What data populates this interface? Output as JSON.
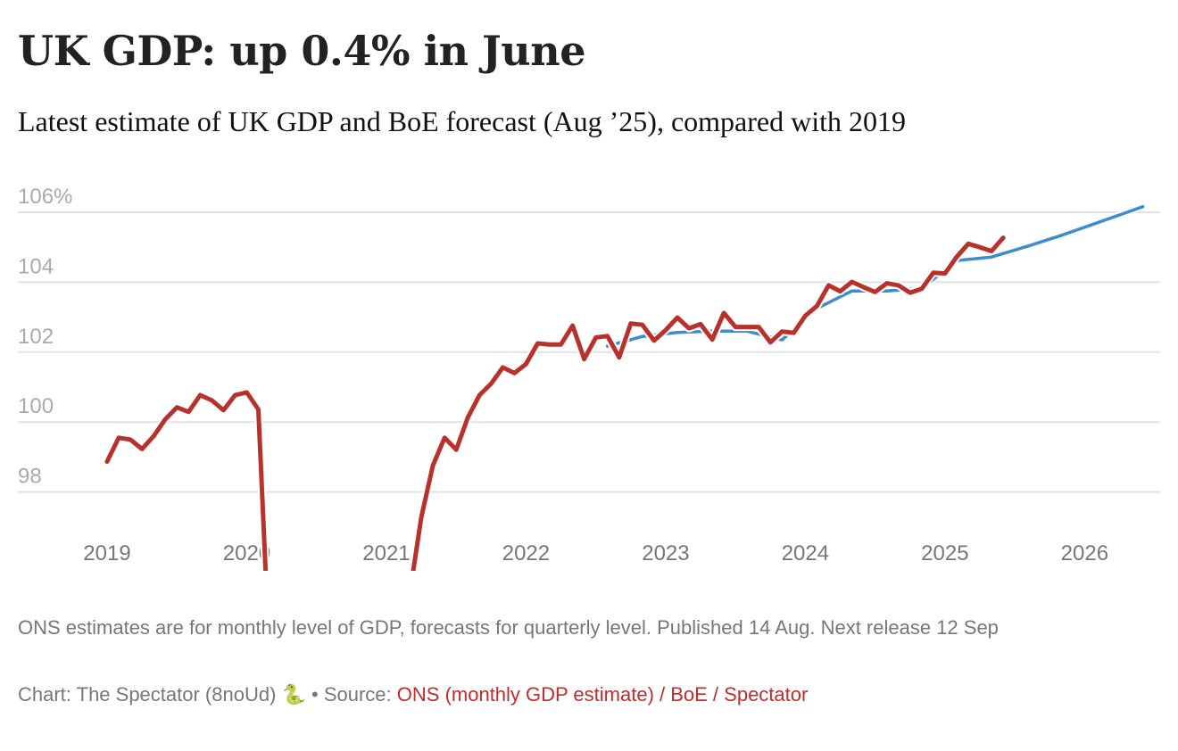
{
  "chart_data": {
    "type": "line",
    "title": "UK GDP: up 0.4% in June",
    "subtitle": "Latest estimate of UK GDP and BoE forecast (Aug ’25), compared with 2019",
    "ylim": [
      95.75,
      107
    ],
    "yticks": [
      98,
      100,
      102,
      104,
      106
    ],
    "ytick_labels": [
      "98",
      "100",
      "102",
      "104",
      "106%"
    ],
    "xticks": [
      "2019",
      "2020",
      "2021",
      "2022",
      "2023",
      "2024",
      "2025",
      "2026"
    ],
    "grid": true,
    "colors": {
      "ons": "#b8312a",
      "forecast": "#3d8bd0"
    },
    "series": [
      {
        "key": "forecast",
        "x": [
          "2022-08",
          "2022-11",
          "2023-02",
          "2023-05",
          "2023-08",
          "2023-11",
          "2024-02",
          "2024-05",
          "2024-08",
          "2024-11",
          "2025-02",
          "2025-05",
          "2025-08",
          "2025-11",
          "2026-02",
          "2026-05",
          "2026-06"
        ],
        "values": [
          102.17,
          102.45,
          102.56,
          102.6,
          102.6,
          102.35,
          103.25,
          103.75,
          103.75,
          103.82,
          104.62,
          104.72,
          105.02,
          105.34,
          105.69,
          106.04,
          106.16
        ]
      },
      {
        "key": "ons",
        "start": "2019-01",
        "values": [
          98.87,
          99.55,
          99.5,
          99.23,
          99.6,
          100.08,
          100.42,
          100.29,
          100.77,
          100.62,
          100.34,
          100.77,
          100.85,
          100.36,
          92.9,
          null,
          null,
          null,
          null,
          null,
          null,
          null,
          null,
          null,
          null,
          null,
          95.06,
          97.28,
          98.76,
          99.55,
          99.21,
          100.13,
          100.77,
          101.1,
          101.56,
          101.4,
          101.66,
          102.25,
          102.22,
          102.22,
          102.76,
          101.8,
          102.42,
          102.46,
          101.85,
          102.82,
          102.78,
          102.33,
          102.63,
          102.99,
          102.68,
          102.8,
          102.36,
          103.12,
          102.72,
          102.72,
          102.72,
          102.28,
          102.59,
          102.55,
          103.04,
          103.32,
          103.91,
          103.74,
          104.01,
          103.86,
          103.72,
          103.97,
          103.91,
          103.7,
          103.81,
          104.27,
          104.25,
          104.72,
          105.1,
          105.0,
          104.89,
          105.27
        ]
      }
    ]
  },
  "footer": {
    "notes": "ONS estimates are for monthly level of GDP, forecasts for quarterly level. Published 14 Aug. Next release 12 Sep",
    "credit_prefix": "Chart: The Spectator (8noUd) 🐍 • Source: ",
    "source_link": "ONS (monthly GDP estimate) / BoE / Spectator",
    "link_color": "#c42b2b"
  }
}
